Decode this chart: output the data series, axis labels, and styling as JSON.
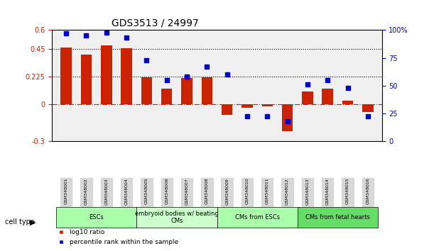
{
  "title": "GDS3513 / 24997",
  "samples": [
    "GSM348001",
    "GSM348002",
    "GSM348003",
    "GSM348004",
    "GSM348005",
    "GSM348006",
    "GSM348007",
    "GSM348008",
    "GSM348009",
    "GSM348010",
    "GSM348011",
    "GSM348012",
    "GSM348013",
    "GSM348014",
    "GSM348015",
    "GSM348016"
  ],
  "log10_ratio": [
    0.46,
    0.4,
    0.475,
    0.455,
    0.215,
    0.125,
    0.21,
    0.215,
    -0.09,
    -0.03,
    -0.02,
    -0.22,
    0.1,
    0.125,
    0.03,
    -0.065
  ],
  "percentile_rank": [
    97,
    95,
    98,
    93,
    73,
    55,
    58,
    67,
    60,
    22,
    22,
    18,
    51,
    55,
    48,
    22
  ],
  "cell_type_groups": [
    {
      "label": "ESCs",
      "start": 0,
      "end": 3,
      "color": "#aaffaa"
    },
    {
      "label": "embryoid bodies w/ beating\nCMs",
      "start": 4,
      "end": 7,
      "color": "#ccffcc"
    },
    {
      "label": "CMs from ESCs",
      "start": 8,
      "end": 11,
      "color": "#aaffaa"
    },
    {
      "label": "CMs from fetal hearts",
      "start": 12,
      "end": 15,
      "color": "#66dd66"
    }
  ],
  "ylim_left": [
    -0.3,
    0.6
  ],
  "ylim_right": [
    0,
    100
  ],
  "yticks_left": [
    -0.3,
    0,
    0.225,
    0.45,
    0.6
  ],
  "ytick_labels_left": [
    "-0.3",
    "0",
    "0.225",
    "0.45",
    "0.6"
  ],
  "yticks_right": [
    0,
    25,
    50,
    75,
    100
  ],
  "ytick_labels_right": [
    "0",
    "25",
    "50",
    "75",
    "100%"
  ],
  "hlines": [
    0.225,
    0.45
  ],
  "bar_color": "#cc2200",
  "dot_color": "#0000cc",
  "zero_line_color": "#cc2200",
  "bar_width": 0.55,
  "background_color": "#ffffff"
}
